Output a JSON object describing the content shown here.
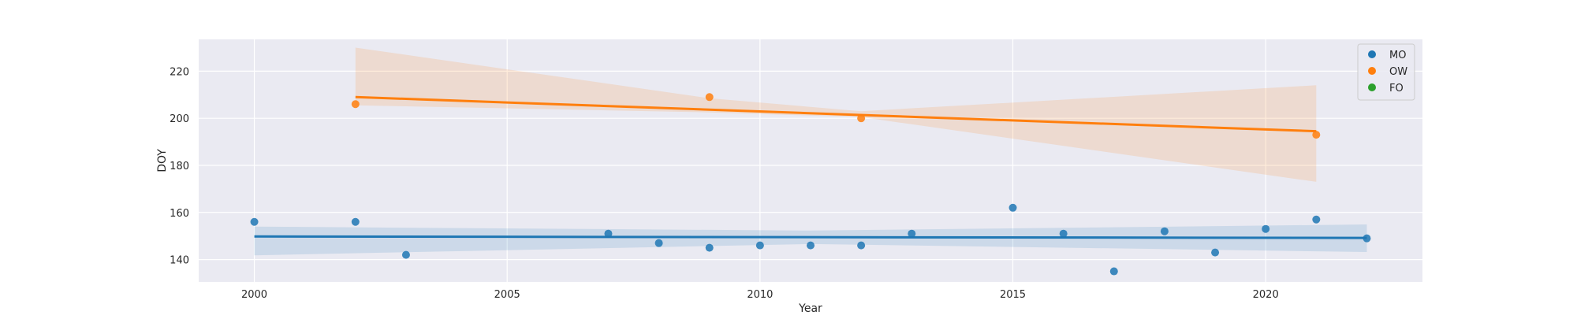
{
  "chart_data": {
    "type": "scatter",
    "xlabel": "Year",
    "ylabel": "DOY",
    "xlim": [
      1998.9,
      2023.1
    ],
    "ylim": [
      130.5,
      233.5
    ],
    "x_ticks": [
      2000,
      2005,
      2010,
      2015,
      2020
    ],
    "y_ticks": [
      140,
      160,
      180,
      200,
      220
    ],
    "grid": true,
    "legend_position": "top-right",
    "background_color": "#eaeaf2",
    "series": [
      {
        "name": "MO",
        "color": "#1f77b4",
        "points": [
          {
            "x": 2000,
            "y": 156
          },
          {
            "x": 2002,
            "y": 156
          },
          {
            "x": 2003,
            "y": 142
          },
          {
            "x": 2007,
            "y": 151
          },
          {
            "x": 2008,
            "y": 147
          },
          {
            "x": 2009,
            "y": 145
          },
          {
            "x": 2010,
            "y": 146
          },
          {
            "x": 2011,
            "y": 146
          },
          {
            "x": 2012,
            "y": 146
          },
          {
            "x": 2013,
            "y": 151
          },
          {
            "x": 2015,
            "y": 162
          },
          {
            "x": 2016,
            "y": 151
          },
          {
            "x": 2017,
            "y": 135
          },
          {
            "x": 2018,
            "y": 152
          },
          {
            "x": 2019,
            "y": 143
          },
          {
            "x": 2020,
            "y": 153
          },
          {
            "x": 2021,
            "y": 157
          },
          {
            "x": 2022,
            "y": 149
          }
        ],
        "fit_line": [
          {
            "x": 2000,
            "y": 149.8
          },
          {
            "x": 2022,
            "y": 149.2
          }
        ],
        "confidence_band": [
          {
            "x": 2000,
            "lower": 141.8,
            "upper": 154.0
          },
          {
            "x": 2011,
            "lower": 146.6,
            "upper": 152.3
          },
          {
            "x": 2022,
            "lower": 143.2,
            "upper": 154.9
          }
        ]
      },
      {
        "name": "OW",
        "color": "#ff7f0e",
        "points": [
          {
            "x": 2002,
            "y": 206
          },
          {
            "x": 2009,
            "y": 209
          },
          {
            "x": 2012,
            "y": 200
          },
          {
            "x": 2021,
            "y": 193
          }
        ],
        "fit_line": [
          {
            "x": 2002,
            "y": 209
          },
          {
            "x": 2021,
            "y": 194.5
          }
        ],
        "confidence_band": [
          {
            "x": 2002,
            "lower": 205.5,
            "upper": 230
          },
          {
            "x": 2009,
            "lower": 202.5,
            "upper": 208.5
          },
          {
            "x": 2012,
            "lower": 200.5,
            "upper": 203
          },
          {
            "x": 2021,
            "lower": 173,
            "upper": 214
          }
        ]
      },
      {
        "name": "FO",
        "color": "#2ca02c",
        "points": []
      }
    ]
  }
}
